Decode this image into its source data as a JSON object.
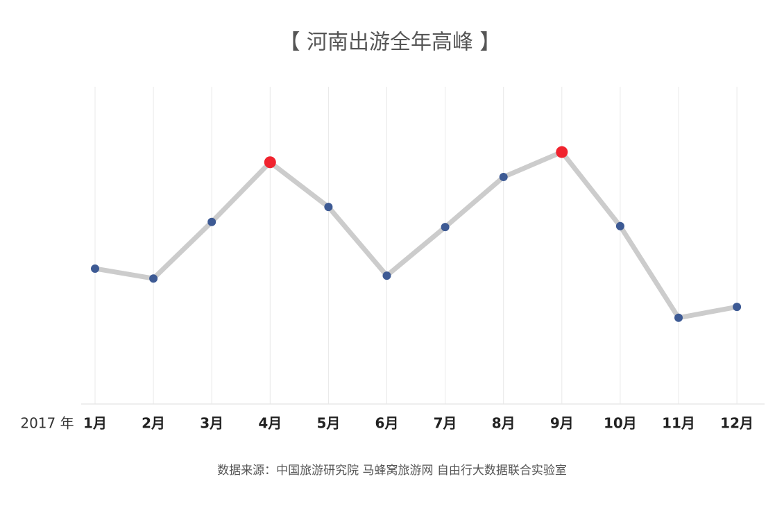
{
  "chart_data": {
    "type": "line",
    "title": "【 河南出游全年高峰 】",
    "x_label": "2017 年",
    "source": "数据来源：中国旅游研究院 马蜂窝旅游网 自由行大数据联合实验室",
    "categories": [
      "1月",
      "2月",
      "3月",
      "4月",
      "5月",
      "6月",
      "7月",
      "8月",
      "9月",
      "10月",
      "11月",
      "12月"
    ],
    "series": [
      {
        "color": "#cccccc",
        "values": [
          42.4,
          39.3,
          57,
          75.7,
          61.7,
          40.2,
          55.4,
          71.1,
          78.9,
          55.7,
          27,
          30.4
        ],
        "marker_colors": [
          "#3d5a94",
          "#3d5a94",
          "#3d5a94",
          "#f0232e",
          "#3d5a94",
          "#3d5a94",
          "#3d5a94",
          "#3d5a94",
          "#f0232e",
          "#3d5a94",
          "#3d5a94",
          "#3d5a94"
        ]
      }
    ],
    "ylim": [
      0,
      100
    ],
    "grid": true
  }
}
